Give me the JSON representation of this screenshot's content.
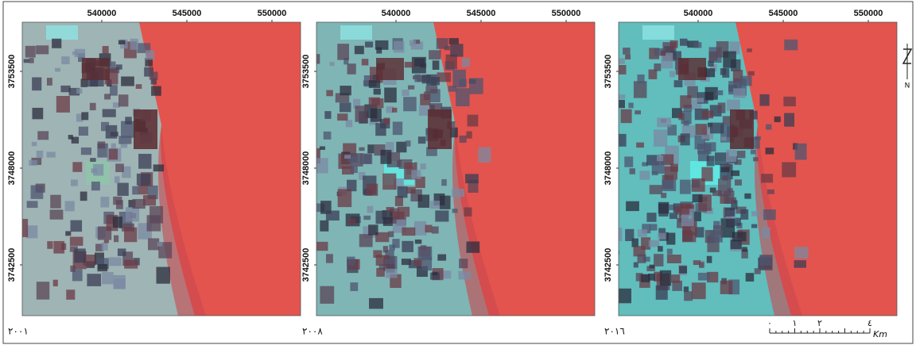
{
  "panels": [
    {
      "year": "۲۰۰۱",
      "xticks": [
        540000,
        545000,
        550000
      ],
      "yticks": [
        3753500,
        3748000,
        3742500
      ]
    },
    {
      "year": "۲۰۰۸",
      "xticks": [
        540000,
        545000,
        550000
      ],
      "yticks": [
        3753500,
        3748000,
        3742500
      ]
    },
    {
      "year": "۲۰۱٦",
      "xticks": [
        540000,
        545000,
        550000
      ],
      "yticks": [
        3753500,
        3748000,
        3742500
      ]
    }
  ],
  "scale_bar": {
    "labels": [
      "۰",
      "۱",
      "۲",
      "٤"
    ],
    "unit": "Km"
  },
  "north": "N"
}
